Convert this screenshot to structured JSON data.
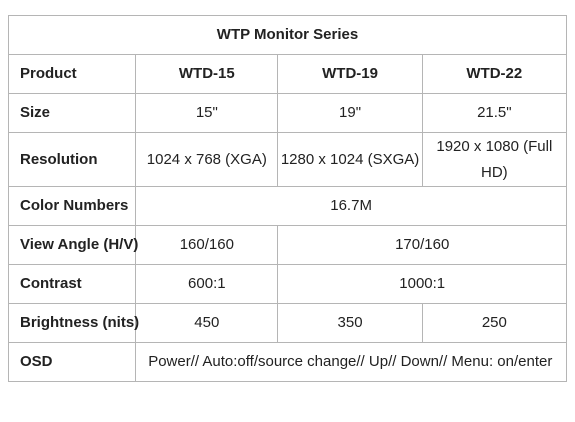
{
  "table": {
    "title": "WTP Monitor Series",
    "header": {
      "label": "Product",
      "models": [
        "WTD-15",
        "WTD-19",
        "WTD-22"
      ]
    },
    "size": {
      "label": "Size",
      "values": [
        "15\"",
        "19\"",
        "21.5\""
      ]
    },
    "resolution": {
      "label": "Resolution",
      "values": [
        "1024 x 768 (XGA)",
        "1280 x 1024 (SXGA)",
        "1920 x 1080 (Full HD)"
      ]
    },
    "color_numbers": {
      "label": "Color Numbers",
      "value": "16.7M"
    },
    "view_angle": {
      "label": "View Angle (H/V)",
      "values": [
        "160/160",
        "170/160"
      ]
    },
    "contrast": {
      "label": "Contrast",
      "values": [
        "600:1",
        "1000:1"
      ]
    },
    "brightness": {
      "label": "Brightness (nits)",
      "values": [
        "450",
        "350",
        "250"
      ]
    },
    "osd": {
      "label": "OSD",
      "value": "Power// Auto:off/source change// Up// Down// Menu: on/enter"
    }
  }
}
